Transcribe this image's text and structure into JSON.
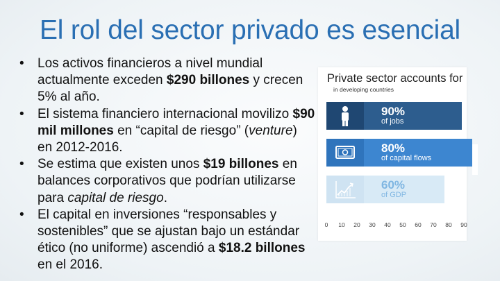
{
  "slide": {
    "title": "El rol del sector privado es esencial",
    "bullet_marker": "•",
    "bullets": [
      {
        "t1": "Los activos financieros a nivel mundial actualmente exceden ",
        "b1": "$290 billones",
        "t2": " y crecen 5% al año."
      },
      {
        "t1": "El sistema financiero internacional movilizo ",
        "b1": "$90 mil millones",
        "t2": " en “capital de riesgo” (",
        "i1": "venture",
        "t3": ") en 2012-2016."
      },
      {
        "t1": "Se estima que existen unos ",
        "b1": "$19 billones",
        "t2": " en balances corporativos que podrían utilizarse para ",
        "i1": "capital de riesgo",
        "t3": "."
      },
      {
        "t1": "El capital en inversiones “responsables y sostenibles” que se ajustan bajo un estándar ético (no uniforme) ascendió a ",
        "b1": "$18.2 billones",
        "t2": " en el 2016."
      }
    ]
  },
  "infographic": {
    "title": "Private sector accounts for",
    "subtitle": "in developing countries",
    "bars": [
      {
        "percent_label": "90%",
        "label": "of jobs",
        "icon": "person-icon",
        "value": 90
      },
      {
        "percent_label": "80%",
        "label": "of capital flows",
        "icon": "banknote-icon",
        "value": 80
      },
      {
        "percent_label": "60%",
        "label": "of GDP",
        "icon": "growth-chart-icon",
        "value": 60
      }
    ],
    "axis_ticks": [
      "0",
      "10",
      "20",
      "30",
      "40",
      "50",
      "60",
      "70",
      "80",
      "90"
    ],
    "colors": {
      "bar1": "#2d5d8e",
      "bar2": "#3d86d0",
      "bar3": "#d8eaf6",
      "title": "#2a6fb3"
    }
  }
}
